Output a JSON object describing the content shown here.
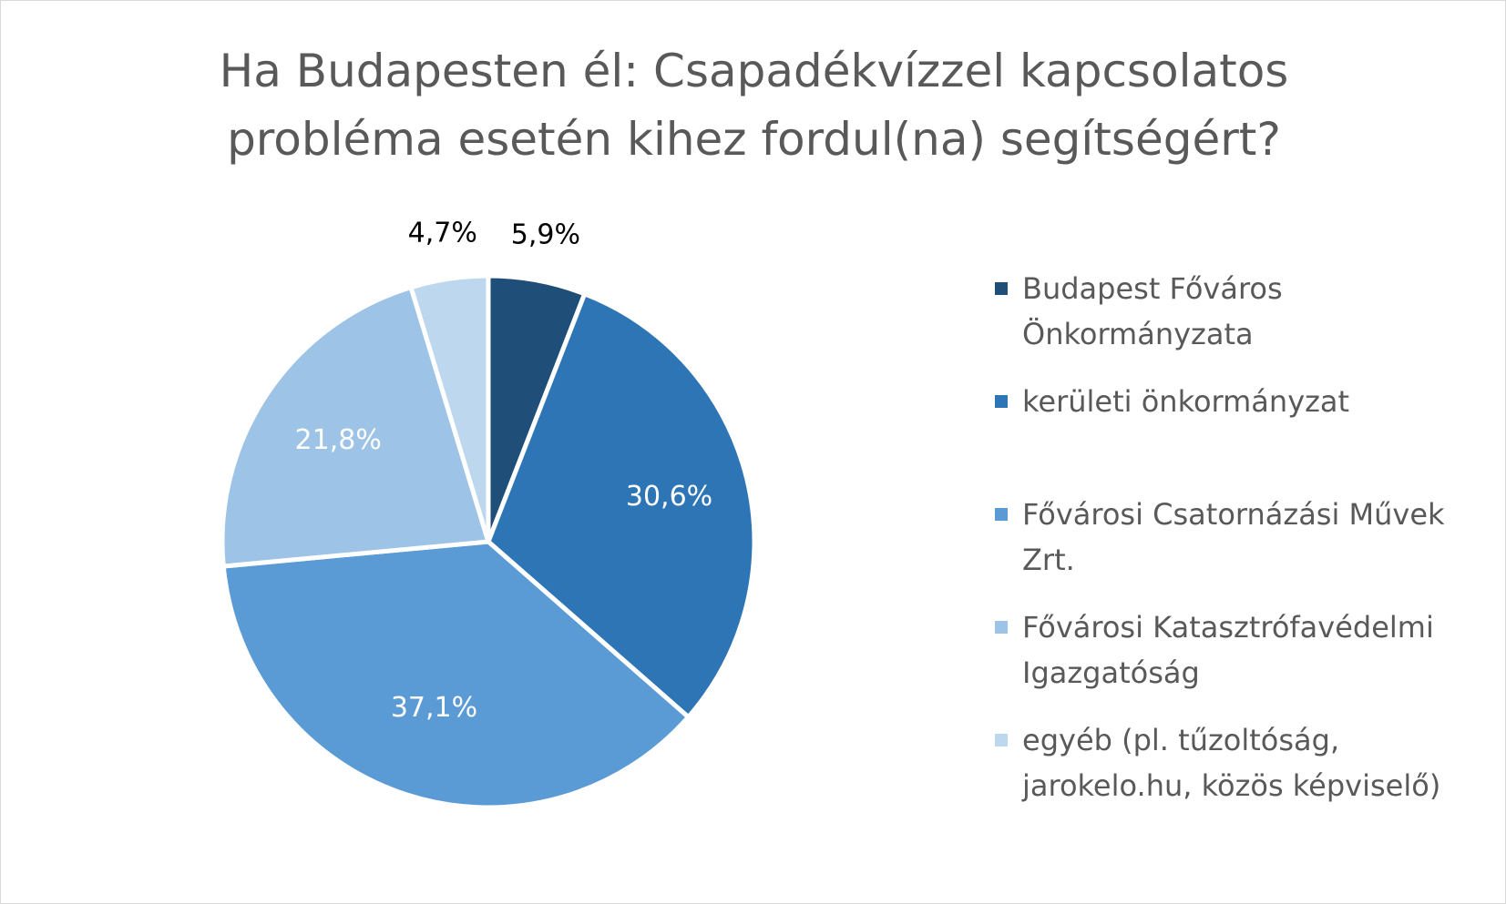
{
  "chart_data": {
    "type": "pie",
    "title": "Ha Budapesten él: Csapadékvízzel kapcsolatos probléma esetén kihez fordul(na) segítségért?",
    "title_lines": [
      "Ha Budapesten él: Csapadékvízzel kapcsolatos",
      "probléma esetén kihez fordul(na) segítségért?"
    ],
    "categories": [
      "Budapest Főváros Önkormányzata",
      "kerületi önkormányzat",
      "Fővárosi Csatornázási Művek Zrt.",
      "Fővárosi Katasztrófavédelmi Igazgatóság",
      "egyéb (pl. tűzoltóság, jarokelo.hu, közös képviselő)"
    ],
    "values": [
      5.9,
      30.6,
      37.1,
      21.8,
      4.7
    ],
    "data_labels": [
      "5,9%",
      "30,6%",
      "37,1%",
      "21,8%",
      "4,7%"
    ],
    "colors": [
      "#1f4e79",
      "#2e75b6",
      "#5b9bd5",
      "#9dc3e6",
      "#bdd7ee"
    ],
    "label_colors": [
      "#000000",
      "#ffffff",
      "#ffffff",
      "#ffffff",
      "#000000"
    ],
    "legend_lines": [
      [
        "Budapest Főváros",
        "Önkormányzata"
      ],
      [
        "kerületi önkormányzat"
      ],
      [
        "Fővárosi Csatornázási Művek",
        "Zrt."
      ],
      [
        "Fővárosi Katasztrófavédelmi",
        "Igazgatóság"
      ],
      [
        "egyéb (pl. tűzoltóság,",
        "jarokelo.hu, közös képviselő)"
      ]
    ],
    "legend_position": "right",
    "start_angle": "top, clockwise"
  }
}
